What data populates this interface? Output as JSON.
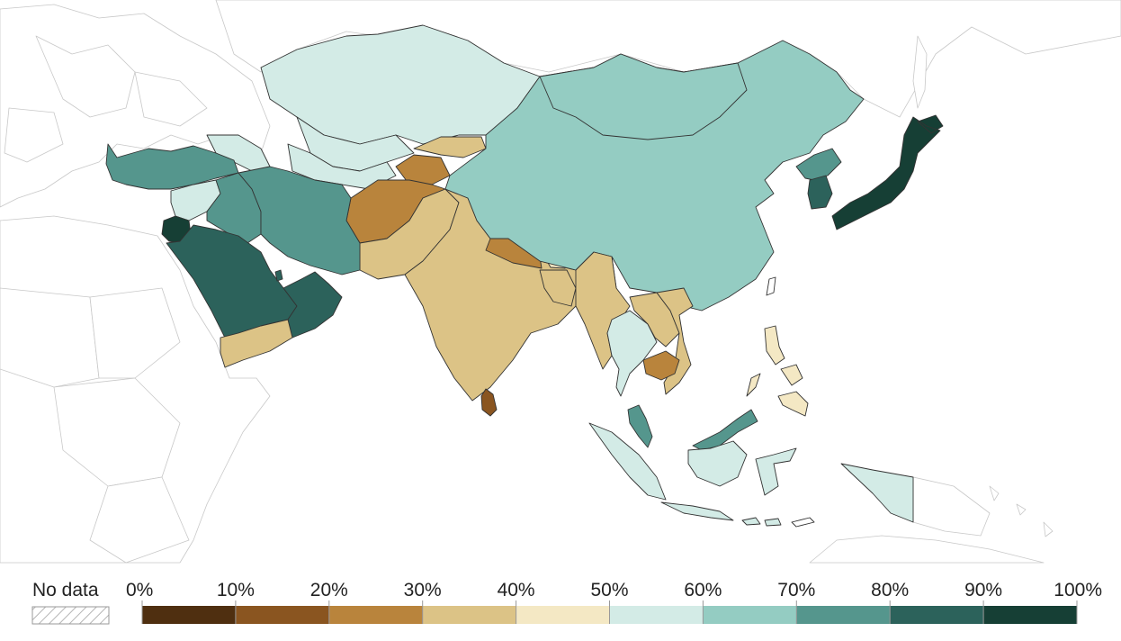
{
  "legend": {
    "no_data_label": "No data",
    "ticks": [
      "0%",
      "10%",
      "20%",
      "30%",
      "40%",
      "50%",
      "60%",
      "70%",
      "80%",
      "90%",
      "100%"
    ],
    "bins": [
      {
        "range": "0-10%",
        "color": "#4f2f10"
      },
      {
        "range": "10-20%",
        "color": "#8a5520"
      },
      {
        "range": "20-30%",
        "color": "#b9843c"
      },
      {
        "range": "30-40%",
        "color": "#dcc386"
      },
      {
        "range": "40-50%",
        "color": "#f4e8c4"
      },
      {
        "range": "50-60%",
        "color": "#d3ebe6"
      },
      {
        "range": "60-70%",
        "color": "#94ccc2"
      },
      {
        "range": "70-80%",
        "color": "#55968d"
      },
      {
        "range": "80-90%",
        "color": "#2c625b"
      },
      {
        "range": "90-100%",
        "color": "#163f35"
      }
    ]
  },
  "regions": [
    {
      "name": "Japan",
      "bin": "90-100%"
    },
    {
      "name": "Jordan",
      "bin": "90-100%"
    },
    {
      "name": "South Korea",
      "bin": "80-90%"
    },
    {
      "name": "Saudi Arabia",
      "bin": "80-90%"
    },
    {
      "name": "Oman",
      "bin": "80-90%"
    },
    {
      "name": "Turkey",
      "bin": "70-80%"
    },
    {
      "name": "Iran",
      "bin": "70-80%"
    },
    {
      "name": "Iraq",
      "bin": "70-80%"
    },
    {
      "name": "Malaysia",
      "bin": "70-80%"
    },
    {
      "name": "North Korea",
      "bin": "70-80%"
    },
    {
      "name": "China",
      "bin": "60-70%"
    },
    {
      "name": "Mongolia",
      "bin": "60-70%"
    },
    {
      "name": "Kazakhstan",
      "bin": "50-60%"
    },
    {
      "name": "Uzbekistan",
      "bin": "50-60%"
    },
    {
      "name": "Turkmenistan",
      "bin": "50-60%"
    },
    {
      "name": "Syria",
      "bin": "50-60%"
    },
    {
      "name": "Thailand",
      "bin": "50-60%"
    },
    {
      "name": "Indonesia",
      "bin": "50-60%"
    },
    {
      "name": "Georgia",
      "bin": "50-60%"
    },
    {
      "name": "Philippines",
      "bin": "40-50%"
    },
    {
      "name": "Bhutan",
      "bin": "40-50%"
    },
    {
      "name": "India",
      "bin": "30-40%"
    },
    {
      "name": "Pakistan",
      "bin": "30-40%"
    },
    {
      "name": "Myanmar",
      "bin": "30-40%"
    },
    {
      "name": "Laos",
      "bin": "30-40%"
    },
    {
      "name": "Vietnam",
      "bin": "30-40%"
    },
    {
      "name": "Yemen",
      "bin": "30-40%"
    },
    {
      "name": "Kyrgyzstan",
      "bin": "30-40%"
    },
    {
      "name": "Bangladesh",
      "bin": "30-40%"
    },
    {
      "name": "Afghanistan",
      "bin": "20-30%"
    },
    {
      "name": "Tajikistan",
      "bin": "20-30%"
    },
    {
      "name": "Nepal",
      "bin": "20-30%"
    },
    {
      "name": "Cambodia",
      "bin": "20-30%"
    },
    {
      "name": "Sri Lanka",
      "bin": "10-20%"
    }
  ]
}
